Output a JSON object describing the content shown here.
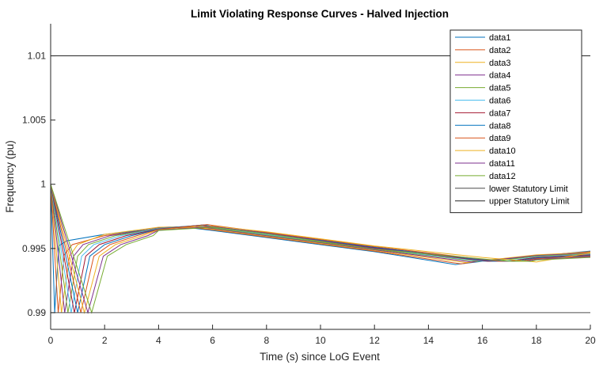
{
  "chart_data": {
    "type": "line",
    "title": "Limit Violating Response Curves - Halved Injection",
    "xlabel": "Time (s) since LoG Event",
    "ylabel": "Frequency (pu)",
    "xlim": [
      0,
      20
    ],
    "ylim": [
      0.9887,
      1.0125
    ],
    "xticks": [
      0,
      2,
      4,
      6,
      8,
      10,
      12,
      14,
      16,
      18,
      20
    ],
    "xtick_labels": [
      "0",
      "2",
      "4",
      "6",
      "8",
      "10",
      "12",
      "14",
      "16",
      "18",
      "20"
    ],
    "yticks": [
      0.99,
      0.995,
      1,
      1.005,
      1.01
    ],
    "ytick_labels": [
      "0.99",
      "0.995",
      "1",
      "1.005",
      "1.01"
    ],
    "legend_position": "top-right",
    "grid": false,
    "series": [
      {
        "name": "data1",
        "color": "#0072BD",
        "points": [
          [
            0,
            1.0
          ],
          [
            0.15,
            0.99
          ],
          [
            0.3,
            0.9952
          ],
          [
            0.6,
            0.9956
          ],
          [
            2,
            0.9961
          ],
          [
            4,
            0.99655
          ],
          [
            5,
            0.99665
          ],
          [
            6,
            0.9964
          ],
          [
            8,
            0.99585
          ],
          [
            10,
            0.9953
          ],
          [
            12,
            0.99475
          ],
          [
            15,
            0.99375
          ],
          [
            16,
            0.994
          ],
          [
            18,
            0.9944
          ],
          [
            20,
            0.9948
          ]
        ]
      },
      {
        "name": "data2",
        "color": "#D95319",
        "points": [
          [
            0,
            1.0
          ],
          [
            0.28,
            0.99
          ],
          [
            0.5,
            0.9945
          ],
          [
            0.8,
            0.9953
          ],
          [
            2,
            0.996
          ],
          [
            4,
            0.99655
          ],
          [
            5.1,
            0.99667
          ],
          [
            6,
            0.99645
          ],
          [
            8,
            0.9959
          ],
          [
            10,
            0.99535
          ],
          [
            12,
            0.9948
          ],
          [
            15.2,
            0.9938
          ],
          [
            16,
            0.99405
          ],
          [
            18,
            0.99445
          ],
          [
            20,
            0.99475
          ]
        ]
      },
      {
        "name": "data3",
        "color": "#EDB120",
        "points": [
          [
            0,
            1.0
          ],
          [
            0.4,
            0.99
          ],
          [
            0.7,
            0.9944
          ],
          [
            1.0,
            0.9953
          ],
          [
            2,
            0.9961
          ],
          [
            4,
            0.99665
          ],
          [
            5.2,
            0.9967
          ],
          [
            6,
            0.9965
          ],
          [
            8,
            0.99595
          ],
          [
            10,
            0.9954
          ],
          [
            12,
            0.99485
          ],
          [
            15.4,
            0.9939
          ],
          [
            16.2,
            0.9941
          ],
          [
            18,
            0.9945
          ],
          [
            20,
            0.9947
          ]
        ]
      },
      {
        "name": "data4",
        "color": "#7E2F8E",
        "points": [
          [
            0,
            1.0
          ],
          [
            0.52,
            0.99
          ],
          [
            0.85,
            0.9944
          ],
          [
            1.2,
            0.9953
          ],
          [
            2.2,
            0.996
          ],
          [
            4,
            0.9966
          ],
          [
            5.3,
            0.99675
          ],
          [
            6,
            0.99655
          ],
          [
            8,
            0.996
          ],
          [
            10,
            0.99545
          ],
          [
            12,
            0.9949
          ],
          [
            15.6,
            0.99395
          ],
          [
            16.4,
            0.9941
          ],
          [
            18,
            0.99445
          ],
          [
            20,
            0.99465
          ]
        ]
      },
      {
        "name": "data5",
        "color": "#77AC30",
        "points": [
          [
            0,
            1.0
          ],
          [
            0.64,
            0.99
          ],
          [
            1.0,
            0.9944
          ],
          [
            1.4,
            0.9953
          ],
          [
            2.4,
            0.996
          ],
          [
            4,
            0.99658
          ],
          [
            5.4,
            0.99678
          ],
          [
            6,
            0.9966
          ],
          [
            8,
            0.99605
          ],
          [
            10,
            0.9955
          ],
          [
            12,
            0.99495
          ],
          [
            15.8,
            0.994
          ],
          [
            16.6,
            0.99405
          ],
          [
            18,
            0.9944
          ],
          [
            20,
            0.9946
          ]
        ]
      },
      {
        "name": "data6",
        "color": "#4DBEEE",
        "points": [
          [
            0,
            1.0
          ],
          [
            0.76,
            0.99
          ],
          [
            1.15,
            0.9944
          ],
          [
            1.6,
            0.9953
          ],
          [
            2.6,
            0.996
          ],
          [
            4,
            0.99655
          ],
          [
            5.5,
            0.9968
          ],
          [
            6,
            0.99665
          ],
          [
            8,
            0.9961
          ],
          [
            10,
            0.99555
          ],
          [
            12,
            0.995
          ],
          [
            16.0,
            0.994
          ],
          [
            16.8,
            0.994
          ],
          [
            18,
            0.99435
          ],
          [
            20,
            0.99455
          ]
        ]
      },
      {
        "name": "data7",
        "color": "#A2142F",
        "points": [
          [
            0,
            1.0
          ],
          [
            0.88,
            0.99
          ],
          [
            1.3,
            0.9944
          ],
          [
            1.8,
            0.9953
          ],
          [
            2.8,
            0.996
          ],
          [
            4,
            0.99652
          ],
          [
            5.6,
            0.99682
          ],
          [
            6,
            0.99668
          ],
          [
            8,
            0.99615
          ],
          [
            10,
            0.9956
          ],
          [
            12,
            0.99505
          ],
          [
            16.2,
            0.994
          ],
          [
            17,
            0.994
          ],
          [
            18,
            0.9943
          ],
          [
            20,
            0.9945
          ]
        ]
      },
      {
        "name": "data8",
        "color": "#0072BD",
        "points": [
          [
            0,
            1.0
          ],
          [
            1.0,
            0.99
          ],
          [
            1.45,
            0.9944
          ],
          [
            2.0,
            0.9953
          ],
          [
            3.0,
            0.996
          ],
          [
            4,
            0.9965
          ],
          [
            5.7,
            0.99684
          ],
          [
            6,
            0.9967
          ],
          [
            8,
            0.9962
          ],
          [
            10,
            0.99565
          ],
          [
            12,
            0.9951
          ],
          [
            16.4,
            0.994
          ],
          [
            17.2,
            0.994
          ],
          [
            18,
            0.99425
          ],
          [
            20,
            0.99445
          ]
        ]
      },
      {
        "name": "data9",
        "color": "#D95319",
        "points": [
          [
            0,
            1.0
          ],
          [
            1.12,
            0.99
          ],
          [
            1.6,
            0.9944
          ],
          [
            2.2,
            0.9953
          ],
          [
            3.2,
            0.996
          ],
          [
            4,
            0.99648
          ],
          [
            5.8,
            0.99686
          ],
          [
            6,
            0.9968
          ],
          [
            8,
            0.99625
          ],
          [
            10,
            0.9957
          ],
          [
            12,
            0.99515
          ],
          [
            16.6,
            0.994
          ],
          [
            17.4,
            0.994
          ],
          [
            18,
            0.9942
          ],
          [
            20,
            0.9944
          ]
        ]
      },
      {
        "name": "data10",
        "color": "#EDB120",
        "points": [
          [
            0,
            1.0
          ],
          [
            1.25,
            0.99
          ],
          [
            1.8,
            0.9944
          ],
          [
            2.4,
            0.9953
          ],
          [
            3.4,
            0.996
          ],
          [
            4,
            0.99645
          ],
          [
            6,
            0.99675
          ],
          [
            8,
            0.9963
          ],
          [
            10,
            0.99575
          ],
          [
            12,
            0.9952
          ],
          [
            14,
            0.99475
          ],
          [
            16,
            0.9943
          ],
          [
            18,
            0.99395
          ],
          [
            20,
            0.99465
          ]
        ]
      },
      {
        "name": "data11",
        "color": "#7E2F8E",
        "points": [
          [
            0,
            1.0
          ],
          [
            1.38,
            0.99
          ],
          [
            1.95,
            0.9944
          ],
          [
            2.6,
            0.9953
          ],
          [
            3.6,
            0.996
          ],
          [
            4,
            0.99642
          ],
          [
            6,
            0.9967
          ],
          [
            8,
            0.9962
          ],
          [
            10,
            0.9956
          ],
          [
            12,
            0.995
          ],
          [
            16.8,
            0.994
          ],
          [
            17.6,
            0.994
          ],
          [
            18,
            0.99415
          ],
          [
            20,
            0.99435
          ]
        ]
      },
      {
        "name": "data12",
        "color": "#77AC30",
        "points": [
          [
            0,
            1.0
          ],
          [
            1.52,
            0.99
          ],
          [
            2.1,
            0.9944
          ],
          [
            2.8,
            0.9953
          ],
          [
            3.8,
            0.996
          ],
          [
            4,
            0.9964
          ],
          [
            6,
            0.99665
          ],
          [
            8,
            0.99615
          ],
          [
            10,
            0.99555
          ],
          [
            12,
            0.99495
          ],
          [
            17.0,
            0.994
          ],
          [
            17.8,
            0.994
          ],
          [
            18,
            0.9941
          ],
          [
            20,
            0.9943
          ]
        ]
      },
      {
        "name": "lower Statutory Limit",
        "color": "#4d4d4d",
        "points": [
          [
            0,
            0.99
          ],
          [
            20,
            0.99
          ]
        ]
      },
      {
        "name": "upper Statutory Limit",
        "color": "#262626",
        "points": [
          [
            0,
            1.01
          ],
          [
            20,
            1.01
          ]
        ]
      }
    ]
  }
}
